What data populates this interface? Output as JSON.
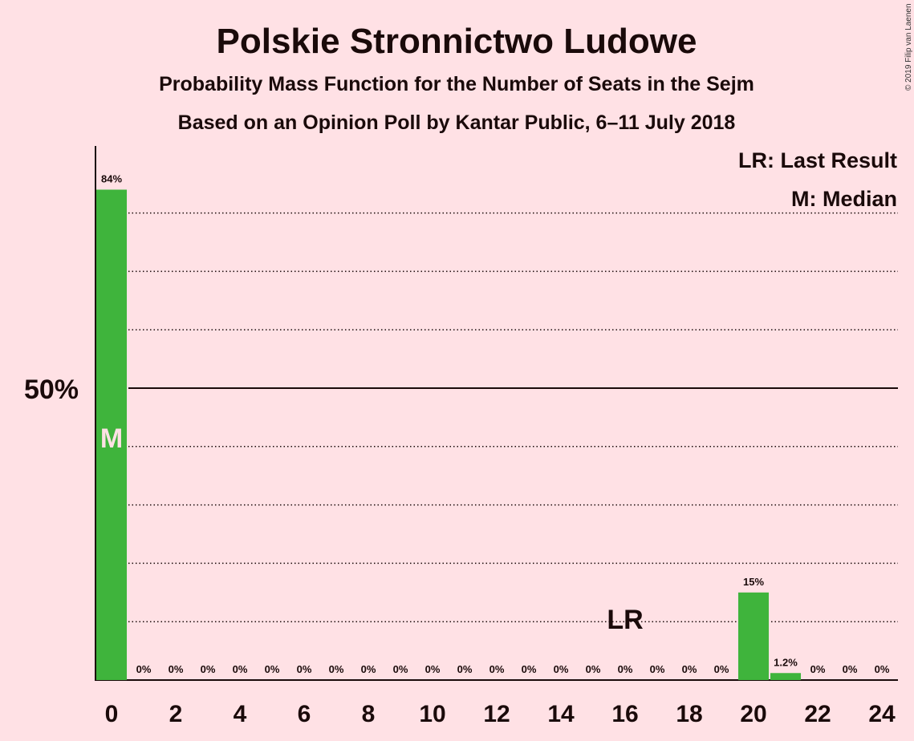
{
  "chart_data": {
    "type": "bar",
    "title": "Polskie Stronnictwo Ludowe",
    "subtitle": "Probability Mass Function for the Number of Seats in the Sejm",
    "subtitle2": "Based on an Opinion Poll by Kantar Public, 6–11 July 2018",
    "copyright": "© 2019 Filip van Laenen",
    "legend": {
      "last_result": "LR: Last Result",
      "median": "M: Median",
      "placement": "top-right"
    },
    "ylabel_50": "50%",
    "ylim": [
      0,
      100
    ],
    "grid_step": 10,
    "x_ticks": [
      0,
      2,
      4,
      6,
      8,
      10,
      12,
      14,
      16,
      18,
      20,
      22,
      24
    ],
    "x_tick_labels": [
      "0",
      "2",
      "4",
      "6",
      "8",
      "10",
      "12",
      "14",
      "16",
      "18",
      "20",
      "22",
      "24"
    ],
    "x": [
      0,
      1,
      2,
      3,
      4,
      5,
      6,
      7,
      8,
      9,
      10,
      11,
      12,
      13,
      14,
      15,
      16,
      17,
      18,
      19,
      20,
      21,
      22,
      23,
      24
    ],
    "values": [
      84,
      0,
      0,
      0,
      0,
      0,
      0,
      0,
      0,
      0,
      0,
      0,
      0,
      0,
      0,
      0,
      0,
      0,
      0,
      0,
      15,
      1.2,
      0,
      0,
      0
    ],
    "data_labels": [
      "84%",
      "0%",
      "0%",
      "0%",
      "0%",
      "0%",
      "0%",
      "0%",
      "0%",
      "0%",
      "0%",
      "0%",
      "0%",
      "0%",
      "0%",
      "0%",
      "0%",
      "0%",
      "0%",
      "0%",
      "15%",
      "1.2%",
      "0%",
      "0%",
      "0%"
    ],
    "median": {
      "x": 0,
      "label": "M"
    },
    "last_result": {
      "x": 16,
      "label": "LR"
    },
    "colors": {
      "bar": "#3FB43C",
      "background": "#FFE1E5",
      "text": "#1a0a0a"
    }
  }
}
